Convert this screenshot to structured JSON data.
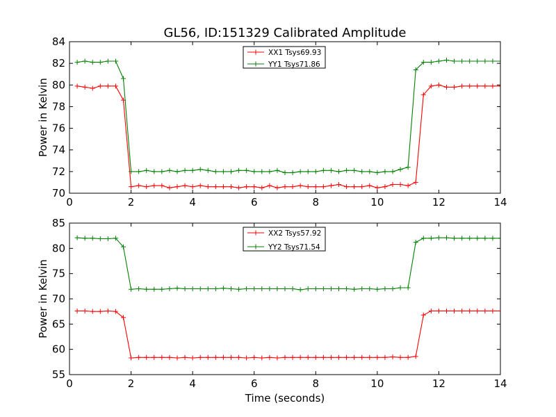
{
  "chart_data": {
    "title": "GL56, ID:151329 Calibrated Amplitude",
    "xlabel": "Time (seconds)",
    "panels": [
      {
        "type": "line",
        "ylabel": "Power in Kelvin",
        "xlim": [
          0,
          14
        ],
        "ylim": [
          70,
          84
        ],
        "xticks": [
          "0",
          "2",
          "4",
          "6",
          "8",
          "10",
          "12",
          "14"
        ],
        "yticks": [
          "70",
          "72",
          "74",
          "76",
          "78",
          "80",
          "82",
          "84"
        ],
        "legend_position": "upper-center",
        "x": [
          0.25,
          0.5,
          0.75,
          1.0,
          1.25,
          1.5,
          1.75,
          2.0,
          2.25,
          2.5,
          2.75,
          3.0,
          3.25,
          3.5,
          3.75,
          4.0,
          4.25,
          4.5,
          4.75,
          5.0,
          5.25,
          5.5,
          5.75,
          6.0,
          6.25,
          6.5,
          6.75,
          7.0,
          7.25,
          7.5,
          7.75,
          8.0,
          8.25,
          8.5,
          8.75,
          9.0,
          9.25,
          9.5,
          9.75,
          10.0,
          10.25,
          10.5,
          10.75,
          11.0,
          11.25,
          11.5,
          11.75,
          12.0,
          12.25,
          12.5,
          12.75,
          13.0,
          13.25,
          13.5,
          13.75,
          14.0
        ],
        "series": [
          {
            "name": "XX1 Tsys69.93",
            "color": "#ff0000",
            "values": [
              79.9,
              79.8,
              79.7,
              79.9,
              79.9,
              79.9,
              78.6,
              70.6,
              70.7,
              70.6,
              70.7,
              70.7,
              70.5,
              70.6,
              70.7,
              70.6,
              70.7,
              70.6,
              70.6,
              70.6,
              70.6,
              70.5,
              70.6,
              70.6,
              70.5,
              70.7,
              70.5,
              70.6,
              70.6,
              70.7,
              70.6,
              70.6,
              70.6,
              70.7,
              70.8,
              70.6,
              70.6,
              70.6,
              70.7,
              70.5,
              70.6,
              70.8,
              70.8,
              70.7,
              71.0,
              79.1,
              79.9,
              80.0,
              79.8,
              79.8,
              79.9,
              79.9,
              79.9,
              79.9,
              79.9,
              79.9
            ]
          },
          {
            "name": "YY1 Tsys71.86",
            "color": "#008000",
            "values": [
              82.1,
              82.2,
              82.1,
              82.1,
              82.2,
              82.2,
              80.6,
              72.0,
              72.0,
              72.1,
              72.0,
              72.0,
              72.1,
              72.0,
              72.1,
              72.1,
              72.2,
              72.1,
              72.0,
              72.0,
              72.0,
              72.1,
              72.1,
              72.0,
              72.0,
              72.0,
              72.1,
              71.9,
              71.9,
              72.0,
              72.0,
              72.0,
              72.1,
              72.1,
              72.0,
              72.1,
              72.1,
              72.0,
              72.0,
              71.9,
              72.0,
              72.0,
              72.2,
              72.4,
              81.4,
              82.1,
              82.1,
              82.2,
              82.3,
              82.2,
              82.2,
              82.2,
              82.2,
              82.2,
              82.2,
              82.2
            ]
          }
        ]
      },
      {
        "type": "line",
        "ylabel": "Power in Kelvin",
        "xlim": [
          0,
          14
        ],
        "ylim": [
          55,
          85
        ],
        "xticks": [
          "0",
          "2",
          "4",
          "6",
          "8",
          "10",
          "12",
          "14"
        ],
        "yticks": [
          "55",
          "60",
          "65",
          "70",
          "75",
          "80",
          "85"
        ],
        "legend_position": "upper-center",
        "x": [
          0.25,
          0.5,
          0.75,
          1.0,
          1.25,
          1.5,
          1.75,
          2.0,
          2.25,
          2.5,
          2.75,
          3.0,
          3.25,
          3.5,
          3.75,
          4.0,
          4.25,
          4.5,
          4.75,
          5.0,
          5.25,
          5.5,
          5.75,
          6.0,
          6.25,
          6.5,
          6.75,
          7.0,
          7.25,
          7.5,
          7.75,
          8.0,
          8.25,
          8.5,
          8.75,
          9.0,
          9.25,
          9.5,
          9.75,
          10.0,
          10.25,
          10.5,
          10.75,
          11.0,
          11.25,
          11.5,
          11.75,
          12.0,
          12.25,
          12.5,
          12.75,
          13.0,
          13.25,
          13.5,
          13.75,
          14.0
        ],
        "series": [
          {
            "name": "XX2 Tsys57.92",
            "color": "#ff0000",
            "values": [
              67.6,
              67.6,
              67.5,
              67.5,
              67.6,
              67.5,
              66.3,
              58.3,
              58.4,
              58.4,
              58.4,
              58.4,
              58.4,
              58.3,
              58.4,
              58.3,
              58.4,
              58.4,
              58.4,
              58.4,
              58.4,
              58.4,
              58.3,
              58.4,
              58.3,
              58.4,
              58.3,
              58.4,
              58.4,
              58.4,
              58.4,
              58.4,
              58.4,
              58.4,
              58.4,
              58.4,
              58.4,
              58.4,
              58.4,
              58.4,
              58.4,
              58.5,
              58.4,
              58.4,
              58.6,
              66.8,
              67.6,
              67.6,
              67.6,
              67.6,
              67.6,
              67.6,
              67.6,
              67.6,
              67.6,
              67.6
            ]
          },
          {
            "name": "YY2 Tsys71.54",
            "color": "#008000",
            "values": [
              82.1,
              82.0,
              82.0,
              81.9,
              81.9,
              82.0,
              80.3,
              71.9,
              72.0,
              71.9,
              71.9,
              71.9,
              72.0,
              72.1,
              72.0,
              72.0,
              72.0,
              72.0,
              72.0,
              72.1,
              72.0,
              71.9,
              72.0,
              72.0,
              72.0,
              72.0,
              72.0,
              72.0,
              72.0,
              71.8,
              72.0,
              72.0,
              72.0,
              72.0,
              72.0,
              72.0,
              71.9,
              72.0,
              72.0,
              71.9,
              72.0,
              72.0,
              72.2,
              72.2,
              81.2,
              82.0,
              82.0,
              82.1,
              82.1,
              82.0,
              82.0,
              82.0,
              82.0,
              82.0,
              82.0,
              82.0
            ]
          }
        ]
      }
    ]
  }
}
